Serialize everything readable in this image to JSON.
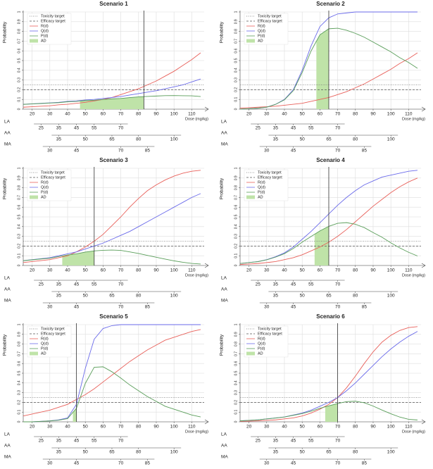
{
  "chart_data": [
    {
      "type": "line",
      "title": "Scenario 1",
      "ylabel": "Probability",
      "xlabel": "Dose (mg/kg)",
      "legend": "upper left",
      "grid": true,
      "xlim": [
        15,
        117
      ],
      "xticks": [
        20,
        30,
        40,
        50,
        60,
        70,
        80,
        90,
        100,
        110
      ],
      "ylim": [
        0,
        1
      ],
      "yticks": [
        0,
        0.1,
        0.2,
        0.3,
        0.4,
        0.5,
        0.6,
        0.7,
        0.8,
        0.9,
        1
      ],
      "x": [
        15,
        20,
        25,
        30,
        35,
        40,
        45,
        50,
        55,
        60,
        65,
        70,
        75,
        80,
        85,
        90,
        95,
        100,
        105,
        110,
        115
      ],
      "series": [
        {
          "name": "R(d)",
          "color": "#e8605a",
          "values": [
            0.02,
            0.025,
            0.03,
            0.035,
            0.045,
            0.05,
            0.06,
            0.07,
            0.085,
            0.1,
            0.12,
            0.15,
            0.18,
            0.21,
            0.25,
            0.29,
            0.34,
            0.39,
            0.45,
            0.51,
            0.58
          ]
        },
        {
          "name": "Q(d)",
          "color": "#6a6aea",
          "values": [
            0.05,
            0.055,
            0.06,
            0.065,
            0.07,
            0.08,
            0.085,
            0.095,
            0.1,
            0.11,
            0.12,
            0.13,
            0.145,
            0.16,
            0.175,
            0.19,
            0.21,
            0.23,
            0.25,
            0.28,
            0.31
          ]
        },
        {
          "name": "P(d)",
          "color": "#5a9e5a",
          "values": [
            0.049,
            0.054,
            0.058,
            0.063,
            0.067,
            0.076,
            0.08,
            0.088,
            0.092,
            0.099,
            0.106,
            0.11,
            0.119,
            0.126,
            0.131,
            0.135,
            0.139,
            0.14,
            0.138,
            0.137,
            0.13
          ]
        }
      ],
      "toxicity_target": {
        "name": "Toxicity target",
        "value": 0.25
      },
      "efficacy_target": {
        "name": "Efficacy target",
        "value": 0.2
      },
      "ad": {
        "name": "AD",
        "color": "#bfe3a8",
        "range": [
          47,
          83
        ]
      },
      "dose_line": 83,
      "secondary_axes": [
        {
          "label": "LA",
          "ticks": [
            25,
            35,
            45,
            55,
            70
          ]
        },
        {
          "label": "AA",
          "ticks": [
            35,
            50,
            65,
            80,
            100
          ]
        },
        {
          "label": "MA",
          "ticks": [
            30,
            45,
            70,
            85
          ]
        }
      ]
    },
    {
      "type": "line",
      "title": "Scenario 2",
      "ylabel": "Probability",
      "xlabel": "Dose (mg/kg)",
      "legend": "upper left",
      "grid": true,
      "xlim": [
        15,
        117
      ],
      "xticks": [
        20,
        30,
        40,
        50,
        60,
        70,
        80,
        90,
        100,
        110
      ],
      "ylim": [
        0,
        1
      ],
      "yticks": [
        0,
        0.1,
        0.2,
        0.3,
        0.4,
        0.5,
        0.6,
        0.7,
        0.8,
        0.9,
        1
      ],
      "x": [
        15,
        20,
        25,
        30,
        35,
        40,
        45,
        50,
        55,
        60,
        65,
        70,
        75,
        80,
        85,
        90,
        95,
        100,
        105,
        110,
        115
      ],
      "series": [
        {
          "name": "R(d)",
          "color": "#e8605a",
          "values": [
            0.01,
            0.015,
            0.02,
            0.025,
            0.03,
            0.04,
            0.05,
            0.06,
            0.08,
            0.1,
            0.12,
            0.15,
            0.18,
            0.22,
            0.26,
            0.31,
            0.36,
            0.41,
            0.47,
            0.52,
            0.58
          ]
        },
        {
          "name": "Q(d)",
          "color": "#6a6aea",
          "values": [
            0,
            0.005,
            0.01,
            0.02,
            0.05,
            0.1,
            0.2,
            0.4,
            0.65,
            0.85,
            0.94,
            0.98,
            0.99,
            1,
            1,
            1,
            1,
            1,
            1,
            1,
            1
          ]
        },
        {
          "name": "P(d)",
          "color": "#5a9e5a",
          "values": [
            0,
            0.005,
            0.01,
            0.02,
            0.049,
            0.096,
            0.19,
            0.376,
            0.598,
            0.765,
            0.827,
            0.833,
            0.812,
            0.78,
            0.74,
            0.69,
            0.64,
            0.59,
            0.53,
            0.48,
            0.42
          ]
        }
      ],
      "toxicity_target": {
        "name": "Toxicity target",
        "value": 0.25
      },
      "efficacy_target": {
        "name": "Efficacy target",
        "value": 0.2
      },
      "ad": {
        "name": "AD",
        "color": "#bfe3a8",
        "range": [
          58,
          65
        ]
      },
      "dose_line": 65,
      "secondary_axes": [
        {
          "label": "LA",
          "ticks": [
            25,
            35,
            45,
            55,
            70
          ]
        },
        {
          "label": "AA",
          "ticks": [
            35,
            50,
            65,
            80,
            100
          ]
        },
        {
          "label": "MA",
          "ticks": [
            30,
            45,
            70,
            85
          ]
        }
      ]
    },
    {
      "type": "line",
      "title": "Scenario 3",
      "ylabel": "Probability",
      "xlabel": "Dose (mg/kg)",
      "legend": "upper left",
      "grid": true,
      "xlim": [
        15,
        117
      ],
      "xticks": [
        20,
        30,
        40,
        50,
        60,
        70,
        80,
        90,
        100,
        110
      ],
      "ylim": [
        0,
        1
      ],
      "yticks": [
        0,
        0.1,
        0.2,
        0.3,
        0.4,
        0.5,
        0.6,
        0.7,
        0.8,
        0.9,
        1
      ],
      "x": [
        15,
        20,
        25,
        30,
        35,
        40,
        45,
        50,
        55,
        60,
        65,
        70,
        75,
        80,
        85,
        90,
        95,
        100,
        105,
        110,
        115
      ],
      "series": [
        {
          "name": "R(d)",
          "color": "#e8605a",
          "values": [
            0.03,
            0.04,
            0.05,
            0.06,
            0.08,
            0.1,
            0.14,
            0.19,
            0.25,
            0.32,
            0.41,
            0.5,
            0.6,
            0.69,
            0.77,
            0.83,
            0.88,
            0.92,
            0.95,
            0.97,
            0.98
          ]
        },
        {
          "name": "Q(d)",
          "color": "#6a6aea",
          "values": [
            0.05,
            0.06,
            0.07,
            0.08,
            0.1,
            0.12,
            0.14,
            0.17,
            0.2,
            0.23,
            0.27,
            0.31,
            0.35,
            0.4,
            0.45,
            0.5,
            0.55,
            0.6,
            0.65,
            0.7,
            0.74
          ]
        },
        {
          "name": "P(d)",
          "color": "#5a9e5a",
          "values": [
            0.049,
            0.058,
            0.067,
            0.075,
            0.092,
            0.108,
            0.12,
            0.138,
            0.15,
            0.156,
            0.159,
            0.155,
            0.14,
            0.124,
            0.104,
            0.085,
            0.066,
            0.048,
            0.033,
            0.021,
            0.015
          ]
        }
      ],
      "toxicity_target": {
        "name": "Toxicity target",
        "value": 0.25
      },
      "efficacy_target": {
        "name": "Efficacy target",
        "value": 0.2
      },
      "ad": {
        "name": "AD",
        "color": "#bfe3a8",
        "range": [
          37,
          55
        ]
      },
      "dose_line": 55,
      "secondary_axes": [
        {
          "label": "LA",
          "ticks": [
            25,
            35,
            45,
            55,
            70
          ]
        },
        {
          "label": "AA",
          "ticks": [
            35,
            50,
            65,
            80,
            100
          ]
        },
        {
          "label": "MA",
          "ticks": [
            30,
            45,
            70,
            85
          ]
        }
      ]
    },
    {
      "type": "line",
      "title": "Scenario 4",
      "ylabel": "Probability",
      "xlabel": "Dose (mg/kg)",
      "legend": "upper left",
      "grid": true,
      "xlim": [
        15,
        117
      ],
      "xticks": [
        20,
        30,
        40,
        50,
        60,
        70,
        80,
        90,
        100,
        110
      ],
      "ylim": [
        0,
        1
      ],
      "yticks": [
        0,
        0.1,
        0.2,
        0.3,
        0.4,
        0.5,
        0.6,
        0.7,
        0.8,
        0.9,
        1
      ],
      "x": [
        15,
        20,
        25,
        30,
        35,
        40,
        45,
        50,
        55,
        60,
        65,
        70,
        75,
        80,
        85,
        90,
        95,
        100,
        105,
        110,
        115
      ],
      "series": [
        {
          "name": "R(d)",
          "color": "#e8605a",
          "values": [
            0.01,
            0.015,
            0.02,
            0.03,
            0.04,
            0.06,
            0.08,
            0.11,
            0.15,
            0.19,
            0.24,
            0.3,
            0.37,
            0.45,
            0.53,
            0.61,
            0.68,
            0.75,
            0.81,
            0.86,
            0.9
          ]
        },
        {
          "name": "Q(d)",
          "color": "#6a6aea",
          "values": [
            0.02,
            0.03,
            0.04,
            0.06,
            0.09,
            0.13,
            0.19,
            0.27,
            0.35,
            0.44,
            0.53,
            0.62,
            0.7,
            0.77,
            0.83,
            0.87,
            0.91,
            0.93,
            0.95,
            0.97,
            0.98
          ]
        },
        {
          "name": "P(d)",
          "color": "#5a9e5a",
          "values": [
            0.02,
            0.03,
            0.039,
            0.058,
            0.086,
            0.122,
            0.175,
            0.24,
            0.298,
            0.356,
            0.403,
            0.434,
            0.441,
            0.424,
            0.39,
            0.339,
            0.291,
            0.233,
            0.181,
            0.136,
            0.098
          ]
        }
      ],
      "toxicity_target": {
        "name": "Toxicity target",
        "value": 0.25
      },
      "efficacy_target": {
        "name": "Efficacy target",
        "value": 0.2
      },
      "ad": {
        "name": "AD",
        "color": "#bfe3a8",
        "range": [
          57,
          65
        ]
      },
      "dose_line": 65,
      "secondary_axes": [
        {
          "label": "LA",
          "ticks": [
            25,
            35,
            45,
            55,
            70
          ]
        },
        {
          "label": "AA",
          "ticks": [
            35,
            50,
            65,
            80,
            100
          ]
        },
        {
          "label": "MA",
          "ticks": [
            30,
            45,
            70,
            85
          ]
        }
      ]
    },
    {
      "type": "line",
      "title": "Scenario 5",
      "ylabel": "Probability",
      "xlabel": "Dose (mg/kg)",
      "legend": "upper left",
      "grid": true,
      "xlim": [
        15,
        117
      ],
      "xticks": [
        20,
        30,
        40,
        50,
        60,
        70,
        80,
        90,
        100,
        110
      ],
      "ylim": [
        0,
        1
      ],
      "yticks": [
        0,
        0.1,
        0.2,
        0.3,
        0.4,
        0.5,
        0.6,
        0.7,
        0.8,
        0.9,
        1
      ],
      "x": [
        15,
        20,
        25,
        30,
        35,
        40,
        45,
        50,
        55,
        60,
        65,
        70,
        75,
        80,
        85,
        90,
        95,
        100,
        105,
        110,
        115
      ],
      "series": [
        {
          "name": "R(d)",
          "color": "#e8605a",
          "values": [
            0.06,
            0.08,
            0.1,
            0.12,
            0.15,
            0.18,
            0.23,
            0.28,
            0.34,
            0.41,
            0.48,
            0.55,
            0.62,
            0.68,
            0.74,
            0.79,
            0.84,
            0.87,
            0.9,
            0.93,
            0.95
          ]
        },
        {
          "name": "Q(d)",
          "color": "#6a6aea",
          "values": [
            0,
            0,
            0.005,
            0.01,
            0.02,
            0.04,
            0.18,
            0.55,
            0.85,
            0.96,
            0.99,
            1,
            1,
            1,
            1,
            1,
            1,
            1,
            1,
            1,
            1
          ]
        },
        {
          "name": "P(d)",
          "color": "#5a9e5a",
          "values": [
            0,
            0,
            0.005,
            0.009,
            0.017,
            0.033,
            0.139,
            0.396,
            0.561,
            0.566,
            0.515,
            0.45,
            0.38,
            0.32,
            0.26,
            0.21,
            0.16,
            0.13,
            0.1,
            0.07,
            0.05
          ]
        }
      ],
      "toxicity_target": {
        "name": "Toxicity target",
        "value": 0.25
      },
      "efficacy_target": {
        "name": "Efficacy target",
        "value": 0.2
      },
      "ad": {
        "name": "AD",
        "color": "#bfe3a8",
        "range": [
          43,
          45
        ]
      },
      "dose_line": 45,
      "secondary_axes": [
        {
          "label": "LA",
          "ticks": [
            25,
            35,
            45,
            55,
            70
          ]
        },
        {
          "label": "AA",
          "ticks": [
            35,
            50,
            65,
            80,
            100
          ]
        },
        {
          "label": "MA",
          "ticks": [
            30,
            45,
            70,
            85
          ]
        }
      ]
    },
    {
      "type": "line",
      "title": "Scenario 6",
      "ylabel": "Probability",
      "xlabel": "Dose (mg/kg)",
      "legend": "upper left",
      "grid": true,
      "xlim": [
        15,
        117
      ],
      "xticks": [
        20,
        30,
        40,
        50,
        60,
        70,
        80,
        90,
        100,
        110
      ],
      "ylim": [
        0,
        1
      ],
      "yticks": [
        0,
        0.1,
        0.2,
        0.3,
        0.4,
        0.5,
        0.6,
        0.7,
        0.8,
        0.9,
        1
      ],
      "x": [
        15,
        20,
        25,
        30,
        35,
        40,
        45,
        50,
        55,
        60,
        65,
        70,
        75,
        80,
        85,
        90,
        95,
        100,
        105,
        110,
        115
      ],
      "series": [
        {
          "name": "R(d)",
          "color": "#e8605a",
          "values": [
            0.005,
            0.007,
            0.01,
            0.015,
            0.02,
            0.03,
            0.04,
            0.06,
            0.09,
            0.13,
            0.18,
            0.25,
            0.35,
            0.47,
            0.6,
            0.72,
            0.82,
            0.89,
            0.94,
            0.97,
            0.98
          ]
        },
        {
          "name": "Q(d)",
          "color": "#6a6aea",
          "values": [
            0.01,
            0.015,
            0.02,
            0.03,
            0.04,
            0.05,
            0.07,
            0.09,
            0.12,
            0.16,
            0.2,
            0.25,
            0.32,
            0.4,
            0.49,
            0.58,
            0.67,
            0.75,
            0.82,
            0.88,
            0.93
          ]
        },
        {
          "name": "P(d)",
          "color": "#5a9e5a",
          "values": [
            0.01,
            0.015,
            0.02,
            0.03,
            0.039,
            0.049,
            0.067,
            0.085,
            0.109,
            0.139,
            0.164,
            0.188,
            0.208,
            0.212,
            0.196,
            0.162,
            0.121,
            0.083,
            0.049,
            0.026,
            0.019
          ]
        }
      ],
      "toxicity_target": {
        "name": "Toxicity target",
        "value": 0.25
      },
      "efficacy_target": {
        "name": "Efficacy target",
        "value": 0.2
      },
      "ad": {
        "name": "AD",
        "color": "#bfe3a8",
        "range": [
          63,
          70
        ]
      },
      "dose_line": 70,
      "secondary_axes": [
        {
          "label": "LA",
          "ticks": [
            25,
            35,
            45,
            55,
            70
          ]
        },
        {
          "label": "AA",
          "ticks": [
            35,
            50,
            65,
            80,
            100
          ]
        },
        {
          "label": "MA",
          "ticks": [
            30,
            45,
            70,
            85
          ]
        }
      ]
    }
  ]
}
